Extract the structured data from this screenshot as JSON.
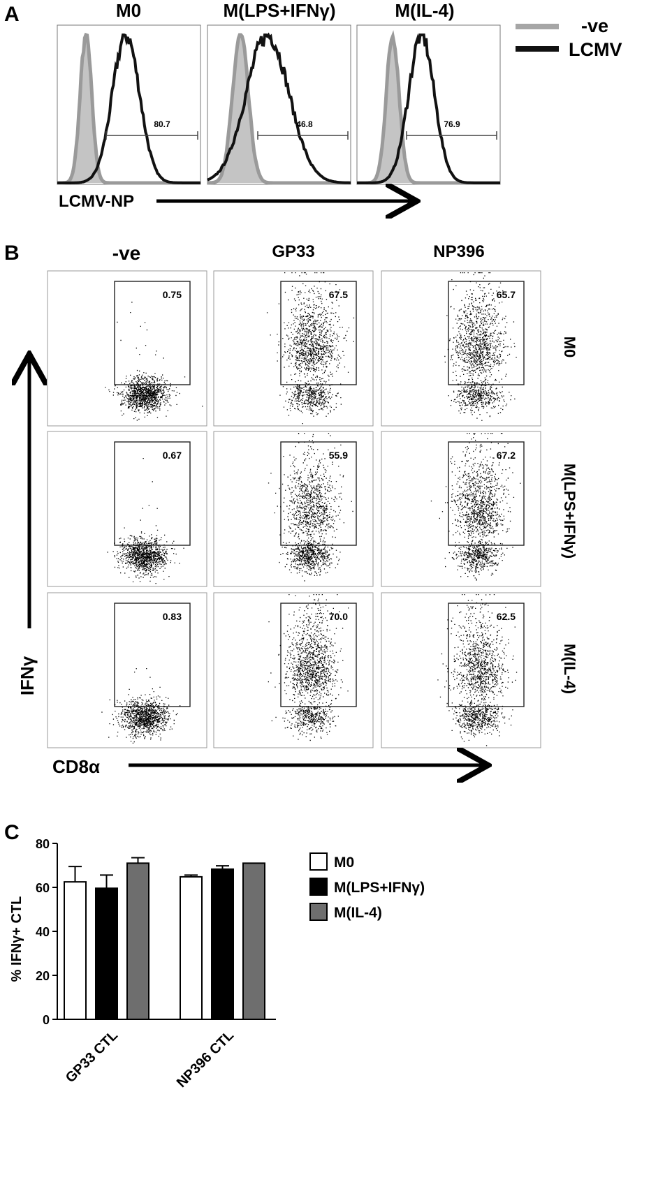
{
  "panel_a": {
    "letter": "A",
    "xlabel": "LCMV-NP",
    "legend": [
      {
        "name": "-ve",
        "color": "#a6a6a6"
      },
      {
        "name": "LCMV",
        "color": "#111111"
      }
    ],
    "histograms": [
      {
        "title": "M0",
        "gate_value": "80.7",
        "neg_mode": 0.2,
        "neg_width": 0.04,
        "lcmv_mode": 0.48,
        "lcmv_width": 0.095
      },
      {
        "title": "M(LPS+IFNγ)",
        "gate_value": "46.8",
        "neg_mode": 0.23,
        "neg_width": 0.055,
        "lcmv_mode": 0.42,
        "lcmv_width": 0.15
      },
      {
        "title": "M(IL-4)",
        "gate_value": "76.9",
        "neg_mode": 0.25,
        "neg_width": 0.045,
        "lcmv_mode": 0.45,
        "lcmv_width": 0.09
      }
    ]
  },
  "panel_b": {
    "letter": "B",
    "xlabel": "CD8α",
    "ylabel": "IFNγ",
    "col_headers": [
      "-ve",
      "GP33",
      "NP396"
    ],
    "row_labels": [
      "M0",
      "M(LPS+IFNγ)",
      "M(IL-4)"
    ],
    "gate_values": [
      [
        "0.75",
        "67.5",
        "65.7"
      ],
      [
        "0.67",
        "55.9",
        "67.2"
      ],
      [
        "0.83",
        "70.0",
        "62.5"
      ]
    ]
  },
  "panel_c": {
    "letter": "C",
    "chart_data": {
      "type": "bar",
      "categories": [
        "GP33 CTL",
        "NP396 CTL"
      ],
      "series": [
        {
          "name": "M0",
          "color": "#ffffff",
          "values": [
            62.5,
            64.8
          ],
          "errors": [
            7,
            0.8
          ]
        },
        {
          "name": "M(LPS+IFNγ)",
          "color": "#000000",
          "values": [
            59.6,
            68.3
          ],
          "errors": [
            6,
            1.5
          ]
        },
        {
          "name": "M(IL-4)",
          "color": "#6e6e6e",
          "values": [
            71.0,
            71.0
          ],
          "errors": [
            2.5,
            0
          ]
        }
      ],
      "ylabel": "% IFNγ+ CTL",
      "ylim": [
        0,
        80
      ],
      "yticks": [
        0,
        20,
        40,
        60,
        80
      ],
      "legend": "right"
    }
  }
}
